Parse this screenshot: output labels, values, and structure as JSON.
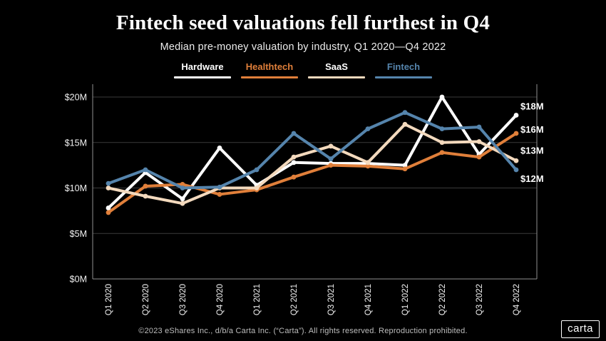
{
  "header": {
    "title": "Fintech seed valuations fell furthest in Q4",
    "subtitle": "Median pre-money valuation by industry, Q1 2020—Q4 2022"
  },
  "legend": {
    "items": [
      {
        "label": "Hardware",
        "color": "#ffffff",
        "label_color": "#ffffff"
      },
      {
        "label": "Healthtech",
        "color": "#e07f3a",
        "label_color": "#e07f3a"
      },
      {
        "label": "SaaS",
        "color": "#f3d9bd",
        "label_color": "#ffffff"
      },
      {
        "label": "Fintech",
        "color": "#5584ac",
        "label_color": "#5584ac"
      }
    ]
  },
  "chart_data": {
    "type": "line",
    "categories": [
      "Q1 2020",
      "Q2 2020",
      "Q3 2020",
      "Q4 2020",
      "Q1 2021",
      "Q2 2021",
      "Q3 2021",
      "Q4 2021",
      "Q1 2022",
      "Q2 2022",
      "Q3 2022",
      "Q4 2022"
    ],
    "series": [
      {
        "name": "Hardware",
        "color": "#ffffff",
        "values": [
          7.8,
          11.7,
          8.8,
          14.4,
          10.3,
          12.8,
          12.7,
          12.7,
          12.5,
          20.0,
          13.7,
          18.0
        ],
        "end_label": "$18M"
      },
      {
        "name": "Healthtech",
        "color": "#e07f3a",
        "values": [
          7.3,
          10.2,
          10.4,
          9.3,
          9.8,
          11.2,
          12.5,
          12.4,
          12.1,
          13.9,
          13.4,
          16.0
        ],
        "end_label": "$16M"
      },
      {
        "name": "SaaS",
        "color": "#f3d9bd",
        "values": [
          10.0,
          9.1,
          8.3,
          10.0,
          10.0,
          13.4,
          14.6,
          12.8,
          17.0,
          15.0,
          15.1,
          13.0
        ],
        "end_label": "$13M"
      },
      {
        "name": "Fintech",
        "color": "#5584ac",
        "values": [
          10.5,
          12.0,
          10.0,
          10.1,
          12.0,
          16.0,
          13.2,
          16.5,
          18.3,
          16.5,
          16.7,
          12.0
        ],
        "end_label": "$12M"
      }
    ],
    "title": "Fintech seed valuations fell furthest in Q4",
    "xlabel": "",
    "ylabel": "",
    "y_ticks": [
      "$0M",
      "$5M",
      "$10M",
      "$15M",
      "$20M"
    ],
    "ylim": [
      0,
      21
    ],
    "grid": true,
    "legend_position": "top",
    "colors": {
      "background": "#000000",
      "gridline": "#3a3a3a",
      "axis_frame": "#8f8f8f",
      "tick_label": "#f2f2f2",
      "end_label": "#ffffff"
    }
  },
  "footer": {
    "copyright": "©2023 eShares Inc., d/b/a Carta Inc. (“Carta”). All rights reserved. Reproduction prohibited.",
    "logo_text": "carta"
  }
}
